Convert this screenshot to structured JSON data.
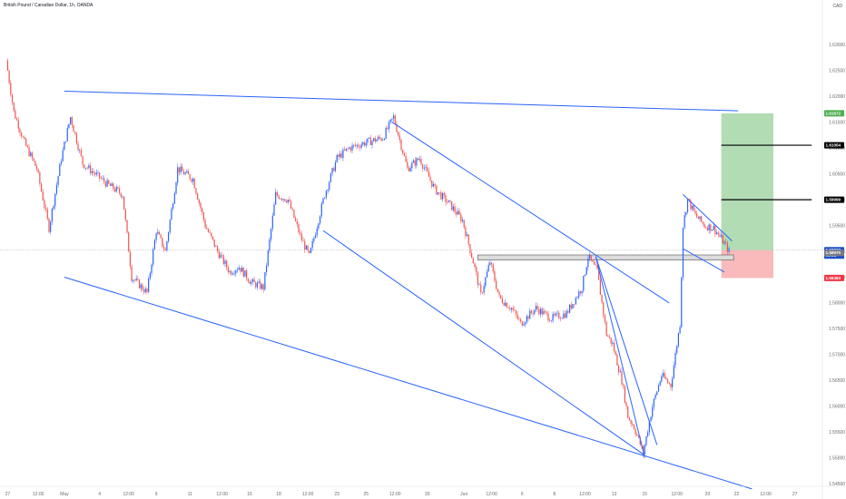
{
  "header": {
    "title": "British Pound / Canadian Dollar, 1h, OANDA",
    "currency": "CAD"
  },
  "colors": {
    "up": "#2962ff",
    "down": "#ef5350",
    "trendline": "#2962ff",
    "profit_zone": "#a5d6a7",
    "loss_zone": "#f7b3b3",
    "box": "#dcdcdc",
    "badge_green": "#4caf50",
    "badge_black": "#000000",
    "badge_blue": "#1e50c8",
    "badge_red": "#f23645",
    "badge_gray": "#787b86"
  },
  "chart_data": {
    "type": "candlestick",
    "title": "British Pound / Canadian Dollar, 1h, OANDA",
    "ylabel": "CAD",
    "ylim": [
      1.5445,
      1.6355
    ],
    "y_ticks": [
      "1.63000",
      "1.62500",
      "1.62000",
      "1.61500",
      "1.61000",
      "1.60500",
      "1.60000",
      "1.59500",
      "1.59000",
      "1.58500",
      "1.58000",
      "1.57500",
      "1.57000",
      "1.56500",
      "1.56000",
      "1.55500",
      "1.55000",
      "1.54500"
    ],
    "x_ticks": [
      "27",
      "12:00",
      "May",
      "4",
      "12:00",
      "9",
      "11",
      "12:00",
      "16",
      "18",
      "12:00",
      "23",
      "25",
      "12:00",
      "30",
      "Jun",
      "12:00",
      "6",
      "8",
      "12:00",
      "13",
      "15",
      "12:00",
      "20",
      "22",
      "12:00",
      "27"
    ],
    "x_tick_index": [
      0,
      20,
      37,
      60,
      79,
      97,
      119,
      140,
      158,
      177,
      196,
      215,
      234,
      253,
      274,
      298,
      316,
      336,
      357,
      377,
      396,
      416,
      437,
      457,
      476,
      495,
      514
    ],
    "x_range": [
      -5,
      532
    ],
    "swing_points": [
      {
        "i": 0,
        "p": 1.627
      },
      {
        "i": 5,
        "p": 1.617
      },
      {
        "i": 12,
        "p": 1.611
      },
      {
        "i": 20,
        "p": 1.606
      },
      {
        "i": 28,
        "p": 1.5945
      },
      {
        "i": 36,
        "p": 1.608
      },
      {
        "i": 42,
        "p": 1.616
      },
      {
        "i": 50,
        "p": 1.607
      },
      {
        "i": 58,
        "p": 1.605
      },
      {
        "i": 66,
        "p": 1.603
      },
      {
        "i": 76,
        "p": 1.601
      },
      {
        "i": 82,
        "p": 1.585
      },
      {
        "i": 92,
        "p": 1.582
      },
      {
        "i": 98,
        "p": 1.594
      },
      {
        "i": 104,
        "p": 1.59
      },
      {
        "i": 112,
        "p": 1.606
      },
      {
        "i": 122,
        "p": 1.604
      },
      {
        "i": 130,
        "p": 1.595
      },
      {
        "i": 138,
        "p": 1.59
      },
      {
        "i": 146,
        "p": 1.586
      },
      {
        "i": 152,
        "p": 1.587
      },
      {
        "i": 160,
        "p": 1.584
      },
      {
        "i": 168,
        "p": 1.583
      },
      {
        "i": 176,
        "p": 1.601
      },
      {
        "i": 184,
        "p": 1.6
      },
      {
        "i": 192,
        "p": 1.593
      },
      {
        "i": 198,
        "p": 1.589
      },
      {
        "i": 208,
        "p": 1.601
      },
      {
        "i": 216,
        "p": 1.608
      },
      {
        "i": 224,
        "p": 1.61
      },
      {
        "i": 234,
        "p": 1.611
      },
      {
        "i": 246,
        "p": 1.612
      },
      {
        "i": 253,
        "p": 1.616
      },
      {
        "i": 262,
        "p": 1.606
      },
      {
        "i": 270,
        "p": 1.608
      },
      {
        "i": 280,
        "p": 1.602
      },
      {
        "i": 290,
        "p": 1.599
      },
      {
        "i": 298,
        "p": 1.596
      },
      {
        "i": 305,
        "p": 1.588
      },
      {
        "i": 310,
        "p": 1.5815
      },
      {
        "i": 316,
        "p": 1.588
      },
      {
        "i": 322,
        "p": 1.581
      },
      {
        "i": 330,
        "p": 1.579
      },
      {
        "i": 336,
        "p": 1.576
      },
      {
        "i": 346,
        "p": 1.579
      },
      {
        "i": 356,
        "p": 1.577
      },
      {
        "i": 366,
        "p": 1.578
      },
      {
        "i": 376,
        "p": 1.583
      },
      {
        "i": 380,
        "p": 1.589
      },
      {
        "i": 386,
        "p": 1.586
      },
      {
        "i": 392,
        "p": 1.574
      },
      {
        "i": 396,
        "p": 1.572
      },
      {
        "i": 402,
        "p": 1.565
      },
      {
        "i": 406,
        "p": 1.558
      },
      {
        "i": 410,
        "p": 1.556
      },
      {
        "i": 416,
        "p": 1.551
      },
      {
        "i": 422,
        "p": 1.56
      },
      {
        "i": 428,
        "p": 1.566
      },
      {
        "i": 434,
        "p": 1.564
      },
      {
        "i": 438,
        "p": 1.572
      },
      {
        "i": 440,
        "p": 1.576
      },
      {
        "i": 442,
        "p": 1.595
      },
      {
        "i": 445,
        "p": 1.6
      },
      {
        "i": 450,
        "p": 1.597
      },
      {
        "i": 456,
        "p": 1.595
      },
      {
        "i": 462,
        "p": 1.5945
      },
      {
        "i": 468,
        "p": 1.592
      },
      {
        "i": 472,
        "p": 1.59
      }
    ],
    "trendlines": [
      {
        "from": {
          "i": 37,
          "p": 1.621
        },
        "to": {
          "i": 477,
          "p": 1.6172
        }
      },
      {
        "from": {
          "i": 37,
          "p": 1.585
        },
        "to": {
          "i": 486,
          "p": 1.544
        }
      },
      {
        "from": {
          "i": 251,
          "p": 1.615
        },
        "to": {
          "i": 432,
          "p": 1.58
        }
      },
      {
        "from": {
          "i": 206,
          "p": 1.594
        },
        "to": {
          "i": 416,
          "p": 1.5505
        }
      },
      {
        "from": {
          "i": 384,
          "p": 1.589
        },
        "to": {
          "i": 416,
          "p": 1.55
        }
      },
      {
        "from": {
          "i": 384,
          "p": 1.589
        },
        "to": {
          "i": 424,
          "p": 1.5525
        }
      },
      {
        "from": {
          "i": 441,
          "p": 1.601
        },
        "to": {
          "i": 473,
          "p": 1.592
        }
      },
      {
        "from": {
          "i": 441,
          "p": 1.5905
        },
        "to": {
          "i": 468,
          "p": 1.586
        }
      }
    ],
    "support_box": {
      "i0": 307,
      "i1": 474,
      "p_top": 1.5893,
      "p_bottom": 1.5883
    },
    "position": {
      "i0": 466,
      "i1": 500,
      "entry": 1.59022,
      "target": 1.61672,
      "stop": 1.58483
    },
    "hlines": [
      {
        "i0": 466,
        "i1": 525,
        "p": 1.61054
      },
      {
        "i0": 466,
        "i1": 525,
        "p": 1.59999
      }
    ],
    "current_price": 1.59022,
    "price_labels": [
      {
        "value": "1.61672",
        "p": 1.61672,
        "color_key": "badge_green"
      },
      {
        "value": "1.61054",
        "p": 1.61054,
        "color_key": "badge_black"
      },
      {
        "value": "1.59999",
        "p": 1.59999,
        "color_key": "badge_black"
      },
      {
        "value": "1.59022",
        "p": 1.59022,
        "color_key": "badge_blue",
        "sub": "05:36"
      },
      {
        "value": "1.58970",
        "p": 1.5897,
        "color_key": "badge_gray"
      },
      {
        "value": "1.58483",
        "p": 1.58483,
        "color_key": "badge_red"
      }
    ]
  }
}
